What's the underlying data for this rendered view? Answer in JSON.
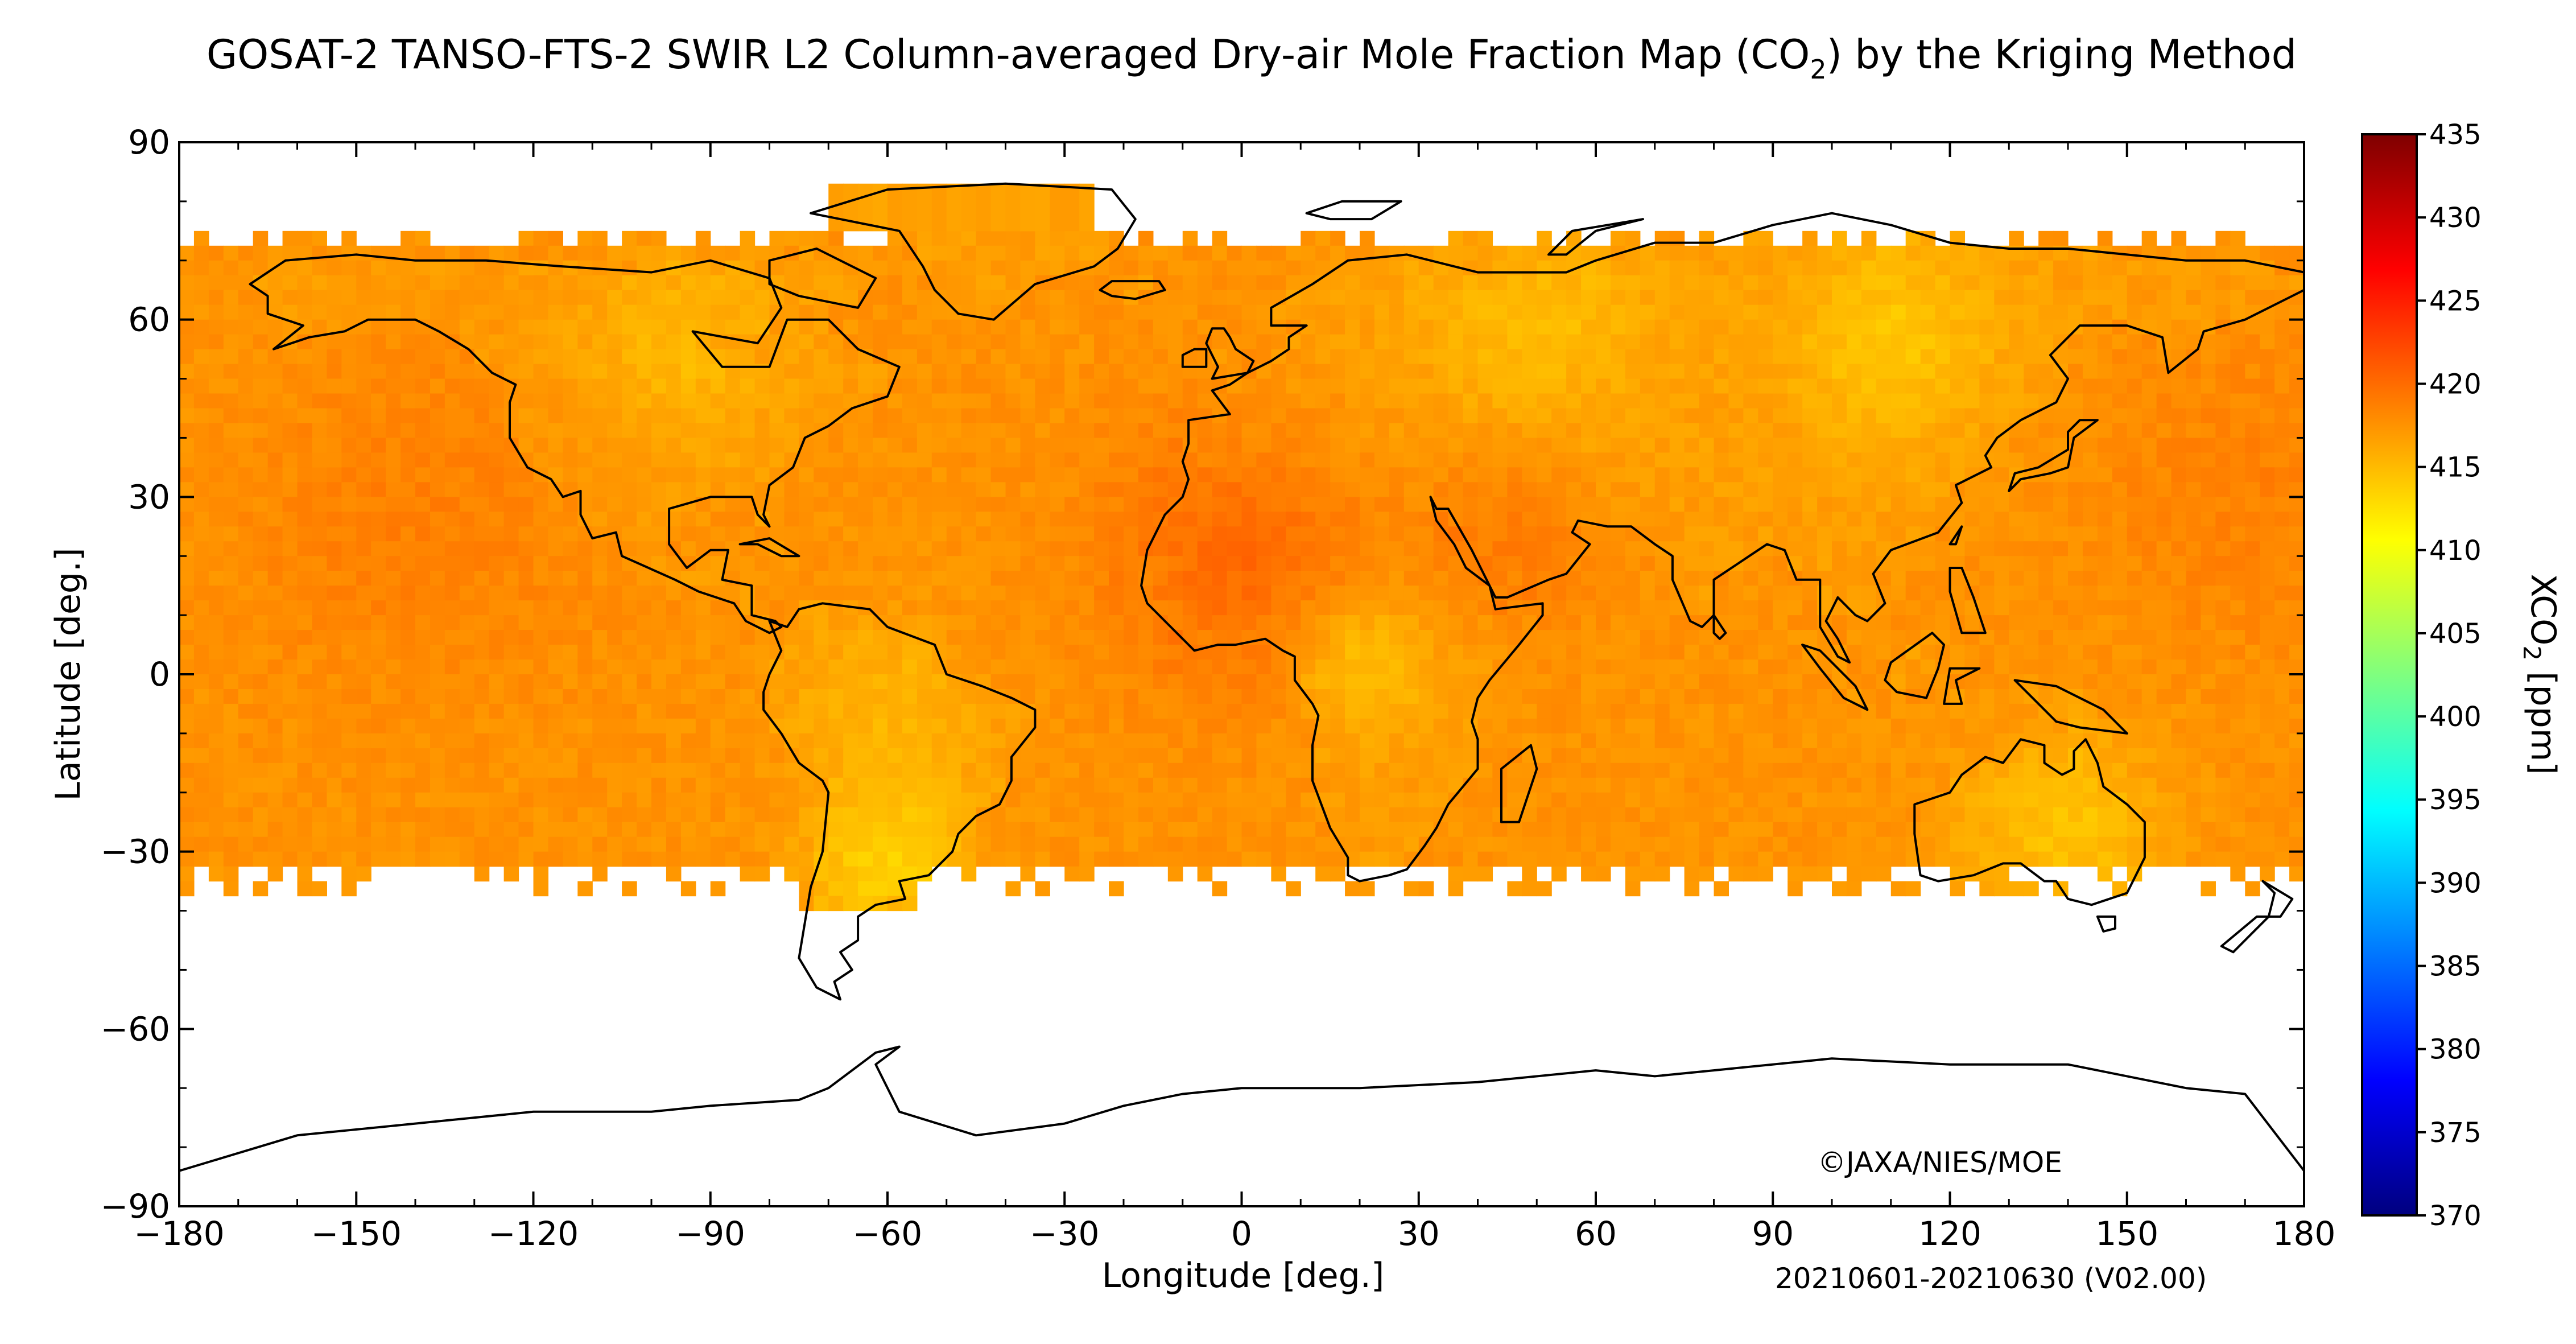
{
  "title": {
    "before": "GOSAT-2 TANSO-FTS-2 SWIR L2 Column-averaged Dry-air Mole Fraction Map (CO",
    "sub": "2",
    "after": ") by the Kriging Method"
  },
  "axes": {
    "xlabel": "Longitude [deg.]",
    "ylabel": "Latitude [deg.]",
    "xticks": [
      -180,
      -150,
      -120,
      -90,
      -60,
      -30,
      0,
      30,
      60,
      90,
      120,
      150,
      180
    ],
    "yticks": [
      90,
      60,
      30,
      0,
      -30,
      -60,
      -90
    ],
    "xtick_labels": [
      "−180",
      "−150",
      "−120",
      "−90",
      "−60",
      "−30",
      "0",
      "30",
      "60",
      "90",
      "120",
      "150",
      "180"
    ],
    "ytick_labels": [
      "90",
      "60",
      "30",
      "0",
      "−30",
      "−60",
      "−90"
    ],
    "xlim": [
      -180,
      180
    ],
    "ylim": [
      -90,
      90
    ]
  },
  "colorbar": {
    "label_before": "XCO",
    "label_sub": "2",
    "label_after": " [ppm]",
    "min": 370,
    "max": 435,
    "ticks": [
      435,
      430,
      425,
      420,
      415,
      410,
      405,
      400,
      395,
      390,
      385,
      380,
      375,
      370
    ],
    "tick_labels": [
      "435",
      "430",
      "425",
      "420",
      "415",
      "410",
      "405",
      "400",
      "395",
      "390",
      "385",
      "380",
      "375",
      "370"
    ],
    "colors": [
      "#00007f",
      "#0000ff",
      "#007fff",
      "#00ffff",
      "#7fff7f",
      "#ffff00",
      "#ff7f00",
      "#ff0000",
      "#7f0000"
    ]
  },
  "credit": "©JAXA/NIES/MOE",
  "period": "20210601-20210630 (V02.00)",
  "map": {
    "projection": "equirectangular",
    "coverage_lat": [
      -40,
      75
    ],
    "typical_value": 418,
    "land_outline_color": "#000000"
  }
}
